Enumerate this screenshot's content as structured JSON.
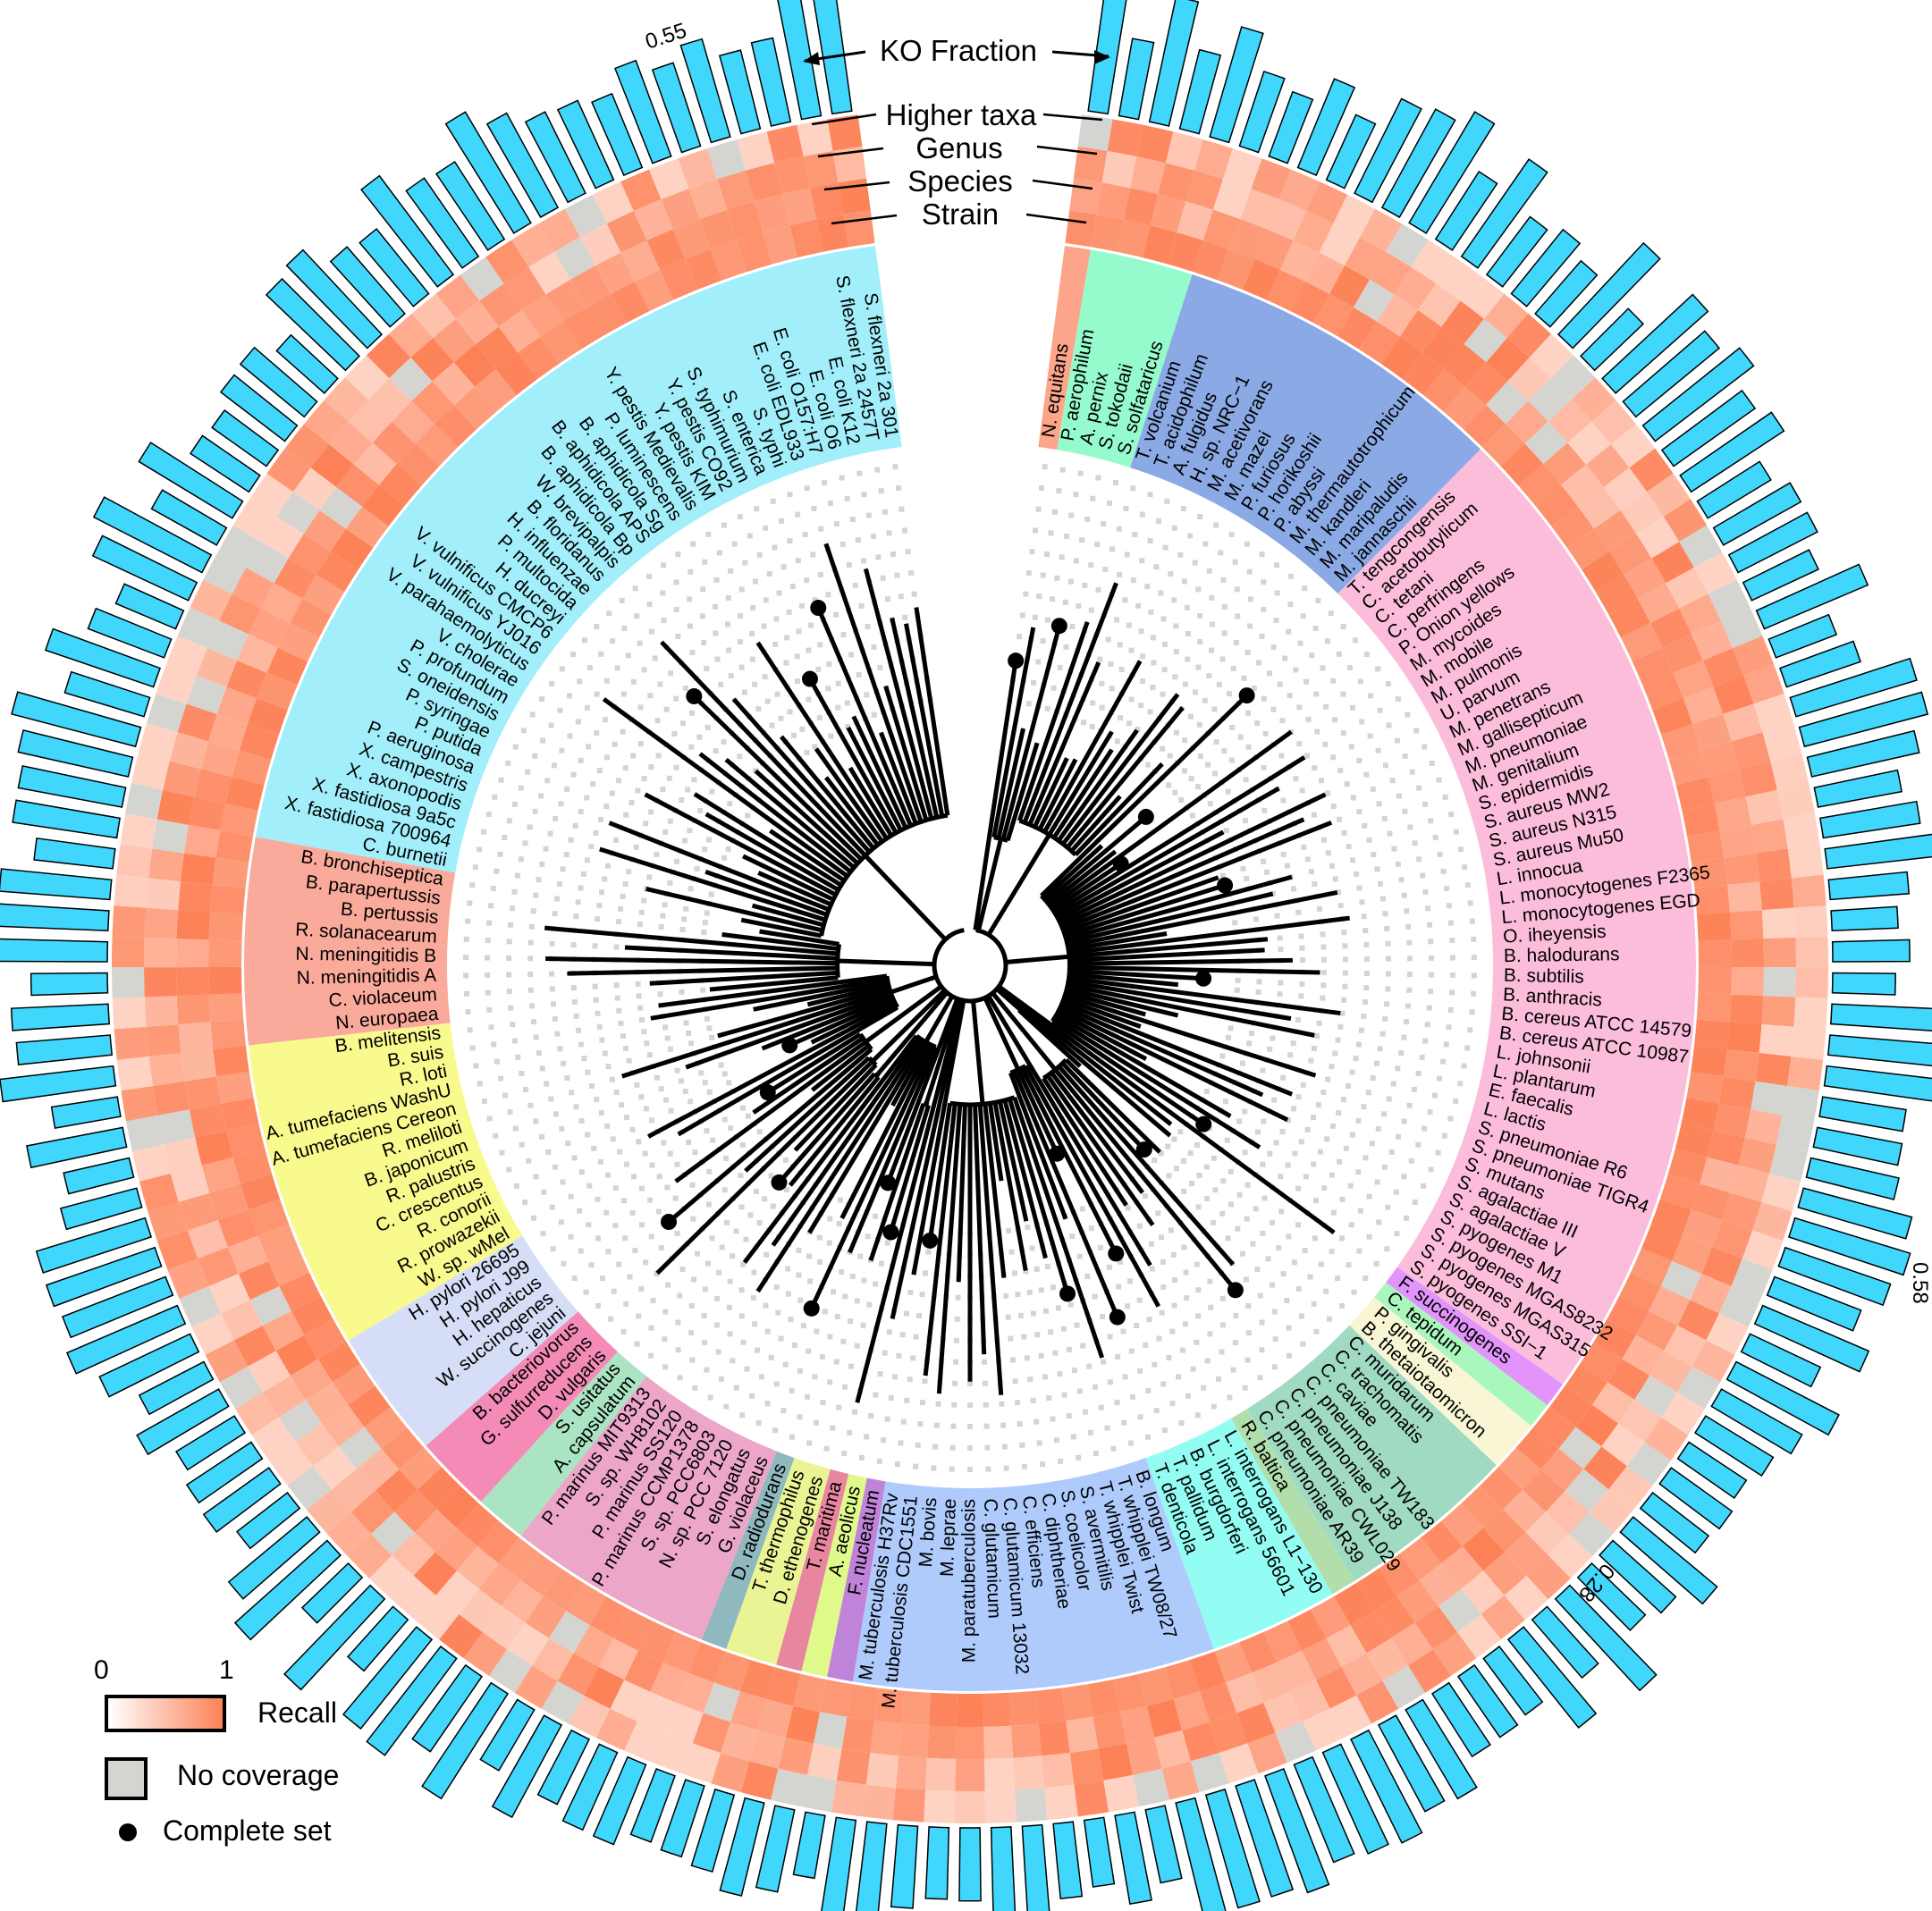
{
  "figure": {
    "title": "KO Fraction",
    "ring_labels": [
      "Higher taxa",
      "Genus",
      "Species",
      "Strain"
    ],
    "bar_scale_labels": [
      {
        "text": "0.55",
        "position": "top-left"
      },
      {
        "text": "0.58",
        "position": "right"
      },
      {
        "text": "0.28",
        "position": "lower-right"
      }
    ]
  },
  "legend": {
    "recall_min": "0",
    "recall_max": "1",
    "recall_label": "Recall",
    "no_coverage_label": "No coverage",
    "complete_set_label": "Complete set"
  },
  "colors": {
    "bar_fill": "#41d7fd",
    "recall_high": "#fd8157",
    "recall_low": "#ffffff",
    "no_coverage": "#d4d5d0",
    "tree_line": "#000000",
    "dot_grid": "#d4d5d0"
  },
  "chart_data": {
    "type": "circular-phylogeny-heatmap-bar",
    "title": "KO Fraction",
    "rings": [
      "Strain",
      "Species",
      "Genus",
      "Higher taxa"
    ],
    "bar_ring": "KO Fraction",
    "legend": [
      "Recall (0–1 gradient)",
      "No coverage",
      "Complete set"
    ],
    "annotations": [
      "0.55",
      "0.58",
      "0.28"
    ],
    "clades": [
      {
        "color": "#fca58a",
        "taxa": [
          "N. equitans"
        ]
      },
      {
        "color": "#96fbcc",
        "taxa": [
          "P. aerophilum",
          "A. pernix",
          "S. tokodaii",
          "S. solfataricus"
        ]
      },
      {
        "color": "#8aa9e5",
        "taxa": [
          "T. volcanium",
          "T. acidophilum",
          "A. fulgidus",
          "H. sp. NRC−1",
          "M. acetivorans",
          "M. mazei",
          "P. furiosus",
          "P. horikoshii",
          "P. abyssi",
          "M. thermautotrophicum",
          "M. kandleri",
          "M. maripaludis",
          "M. jannaschii"
        ]
      },
      {
        "color": "#fcbddb",
        "taxa": [
          "T. tengcongensis",
          "C. acetobutylicum",
          "C. tetani",
          "C. perfringens",
          "P. Onion yellows",
          "M. mycoides",
          "M. mobile",
          "M. pulmonis",
          "U. parvum",
          "M. penetrans",
          "M. gallisepticum",
          "M. pneumoniae",
          "M. genitalium",
          "S. epidermidis",
          "S. aureus MW2",
          "S. aureus N315",
          "S. aureus Mu50",
          "L. innocua",
          "L. monocytogenes F2365",
          "L. monocytogenes EGD",
          "O. iheyensis",
          "B. halodurans",
          "B. subtilis",
          "B. anthracis",
          "B. cereus ATCC 14579",
          "B. cereus ATCC 10987",
          "L. johnsonii",
          "L. plantarum",
          "E. faecalis",
          "L. lactis",
          "S. pneumoniae R6",
          "S. pneumoniae TIGR4",
          "S. mutans",
          "S. agalactiae III",
          "S. agalactiae V",
          "S. pyogenes M1",
          "S. pyogenes MGAS8232",
          "S. pyogenes MGAS315",
          "S. pyogenes SSI−1"
        ]
      },
      {
        "color": "#e294fb",
        "taxa": [
          "F. succinogenes"
        ]
      },
      {
        "color": "#aaf7bd",
        "taxa": [
          "C. tepidum"
        ]
      },
      {
        "color": "#f8f6d5",
        "taxa": [
          "P. gingivalis",
          "B. thetaiotaomicron"
        ]
      },
      {
        "color": "#a1dac2",
        "taxa": [
          "C. muridarum",
          "C. trachomatis",
          "C. caviae",
          "C. pneumoniae TW183",
          "C. pneumoniae J138",
          "C. pneumoniae CWL029",
          "C. pneumoniae AR39"
        ]
      },
      {
        "color": "#b2deac",
        "taxa": [
          "R. baltica"
        ]
      },
      {
        "color": "#93fdf3",
        "taxa": [
          "L. interrogans L1−130",
          "L. interrogans 56601",
          "B. burgdorferi",
          "T. pallidum",
          "T. denticola"
        ]
      },
      {
        "color": "#afcbfc",
        "taxa": [
          "B. longum",
          "T. whipplei TW08/27",
          "T. whipplei Twist",
          "S. avermitilis",
          "S. coelicolor",
          "C. diphtheriae",
          "C. efficiens",
          "C. glutamicum 13032",
          "C. glutamicum",
          "M. paratuberculosis",
          "M. leprae",
          "M. bovis",
          "M. tuberculosis CDC1551",
          "M. tuberculosis H37Rv"
        ]
      },
      {
        "color": "#c083da",
        "taxa": [
          "F. nucleatum"
        ]
      },
      {
        "color": "#dffa8a",
        "taxa": [
          "A. aeolicus"
        ]
      },
      {
        "color": "#e8859f",
        "taxa": [
          "T. maritima"
        ]
      },
      {
        "color": "#eaf494",
        "taxa": [
          "D. ethenogenes",
          "T. thermophilus"
        ]
      },
      {
        "color": "#8fb8bf",
        "taxa": [
          "D. radiodurans"
        ]
      },
      {
        "color": "#eba6c8",
        "taxa": [
          "G. violaceus",
          "S. elongatus",
          "N. sp. PCC 7120",
          "S. sp. PCC6803",
          "P. marinus CCMP1378",
          "P. marinus SS120",
          "S. sp. WH8102",
          "P. marinus MIT9313"
        ]
      },
      {
        "color": "#aae4c3",
        "taxa": [
          "A. capsulatum",
          "S. usitatus"
        ]
      },
      {
        "color": "#f38bb6",
        "taxa": [
          "D. vulgaris",
          "G. sulfurreducens",
          "B. bacteriovorus"
        ]
      },
      {
        "color": "#d5def6",
        "taxa": [
          "C. jejuni",
          "W. succinogenes",
          "H. hepaticus",
          "H. pylori J99",
          "H. pylori 26695"
        ]
      },
      {
        "color": "#f9fa8e",
        "taxa": [
          "W. sp. wMel",
          "R. prowazekii",
          "R. conorii",
          "C. crescentus",
          "R. palustris",
          "B. japonicum",
          "R. meliloti",
          "A. tumefaciens Cereon",
          "A. tumefaciens WashU",
          "R. loti",
          "B. suis",
          "B. melitensis"
        ]
      },
      {
        "color": "#faaa9b",
        "taxa": [
          "N. europaea",
          "C. violaceum",
          "N. meningitidis A",
          "N. meningitidis B",
          "R. solanacearum",
          "B. pertussis",
          "B. parapertussis",
          "B. bronchiseptica"
        ]
      },
      {
        "color": "#a2effb",
        "taxa": [
          "C. burnetii",
          "X. fastidiosa 700964",
          "X. fastidiosa 9a5c",
          "X. axonopodis",
          "X. campestris",
          "P. aeruginosa",
          "P. putida",
          "P. syringae",
          "S. oneidensis",
          "P. profundum",
          "V. cholerae",
          "V. parahaemolyticus",
          "V. vulnificus YJ016",
          "V. vulnificus CMCP6",
          "H. ducreyi",
          "P. multocida",
          "H. influenzae",
          "B. floridanus",
          "W. brevipalpis",
          "B. aphidicola Bp",
          "B. aphidicola APS",
          "B. aphidicola Sg",
          "P. luminescens",
          "Y. pestis Medievalis",
          "Y. pestis KIM",
          "Y. pestis CO92",
          "S. typhimurium",
          "S. enterica",
          "S. typhi",
          "E. coli EDL933",
          "E. coli O157:H7",
          "E. coli O6",
          "E. coli K12",
          "S. flexneri 2a 2457T",
          "S. flexneri 2a 301"
        ]
      }
    ]
  }
}
